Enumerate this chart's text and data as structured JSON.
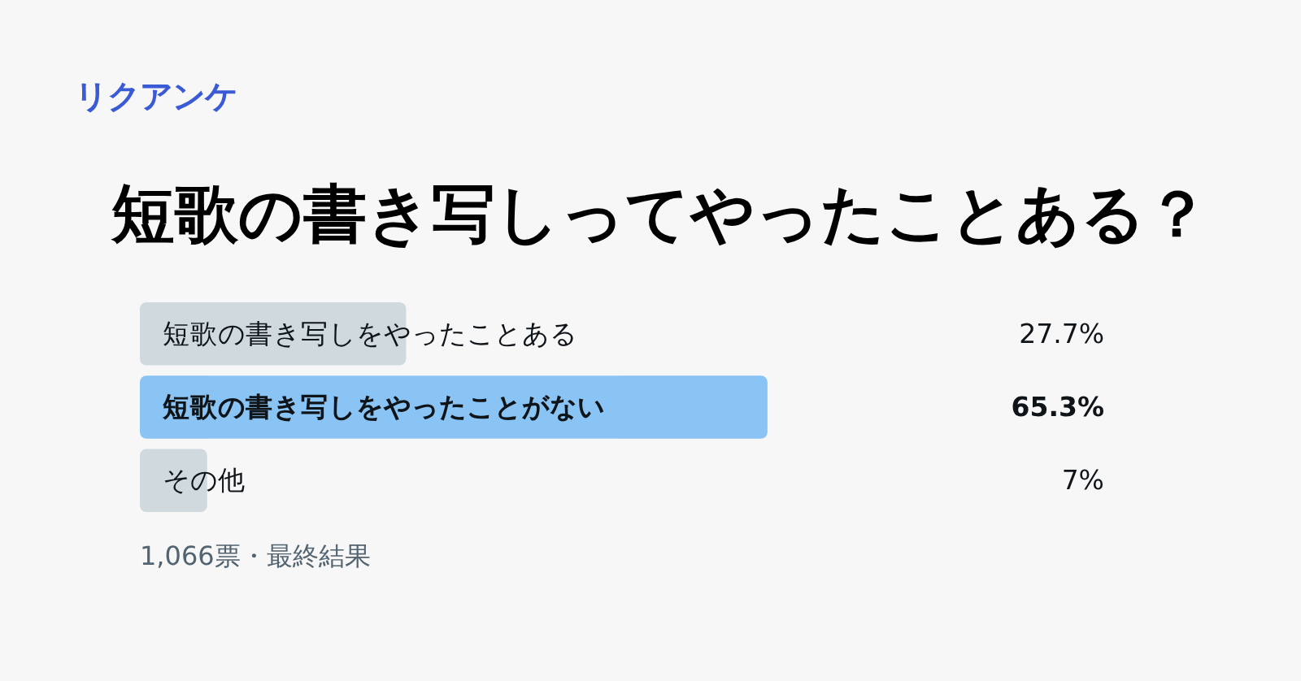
{
  "chart_data": {
    "type": "bar",
    "orientation": "horizontal",
    "subtitle": "リクアンケ",
    "title": "短歌の書き写しってやったことある？",
    "categories": [
      "短歌の書き写しをやったことある",
      "短歌の書き写しをやったことがない",
      "その他"
    ],
    "values": [
      27.7,
      65.3,
      7
    ],
    "value_labels": [
      "27.7%",
      "65.3%",
      "7%"
    ],
    "colors": [
      "#cfd9de",
      "#8ac4f5",
      "#cfd9de"
    ],
    "annotations": [
      "1,066票・最終結果"
    ]
  }
}
